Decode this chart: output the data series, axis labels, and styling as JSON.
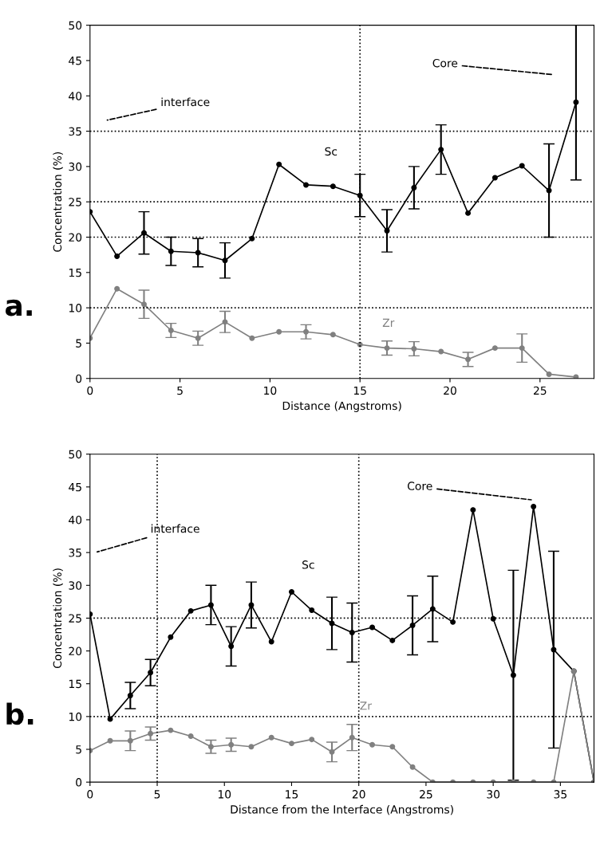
{
  "chart_data": [
    {
      "type": "line",
      "xlabel": "Distance (Angstroms)",
      "ylabel": "Concentration (%)",
      "x": [
        0,
        1.5,
        3,
        4.5,
        6,
        7.5,
        9,
        10.5,
        12,
        13.5,
        15,
        16.5,
        18,
        19.5,
        21,
        22.5,
        24,
        25.5,
        27
      ],
      "series": [
        {
          "name": "Sc",
          "color": "#000000",
          "values": [
            23.6,
            17.3,
            20.6,
            18,
            17.8,
            16.7,
            19.8,
            30.3,
            27.4,
            27.2,
            25.9,
            20.9,
            27,
            32.4,
            23.4,
            28.4,
            30.1,
            26.6,
            39.1
          ],
          "errors": [
            null,
            null,
            3,
            2,
            2,
            2.5,
            null,
            null,
            null,
            null,
            3,
            3,
            3,
            3.5,
            null,
            null,
            null,
            6.6,
            11
          ]
        },
        {
          "name": "Zr",
          "color": "#808080",
          "values": [
            5.7,
            12.7,
            10.5,
            6.8,
            5.7,
            8,
            5.7,
            6.6,
            6.6,
            6.2,
            4.8,
            4.3,
            4.2,
            3.8,
            2.7,
            4.3,
            4.3,
            0.6,
            0.2
          ],
          "errors": [
            null,
            null,
            2,
            1,
            1,
            1.5,
            null,
            null,
            1,
            null,
            null,
            1,
            1,
            null,
            1,
            null,
            2,
            null,
            null
          ]
        }
      ],
      "xlim": [
        0,
        28
      ],
      "ylim": [
        0,
        50
      ],
      "xticks": [
        0,
        5,
        10,
        15,
        20,
        25
      ],
      "yticks": [
        0,
        5,
        10,
        15,
        20,
        25,
        30,
        35,
        40,
        45,
        50
      ],
      "ref_lines": [
        {
          "axis": "y",
          "value": 10,
          "line_style": "dotted"
        },
        {
          "axis": "y",
          "value": 20,
          "line_style": "dotted"
        },
        {
          "axis": "y",
          "value": 25,
          "line_style": "dotted"
        },
        {
          "axis": "y",
          "value": 35,
          "line_style": "dotted"
        },
        {
          "axis": "x",
          "value": 15,
          "line_style": "dotted"
        }
      ],
      "annotations": [
        "a.",
        "interface",
        "Core"
      ],
      "marker": "circle",
      "line_style": "solid",
      "grid": false,
      "legend": false
    },
    {
      "type": "line",
      "xlabel": "Distance from the Interface (Angstroms)",
      "ylabel": "Concentration (%)",
      "x": [
        0,
        1.5,
        3,
        4.5,
        6,
        7.5,
        9,
        10.5,
        12,
        13.5,
        15,
        16.5,
        18,
        19.5,
        21,
        22.5,
        24,
        25.5,
        27,
        28.5,
        30,
        31.5,
        33,
        34.5,
        36,
        37.5
      ],
      "series": [
        {
          "name": "Sc",
          "color": "#000000",
          "values": [
            25.6,
            9.6,
            13.2,
            16.7,
            22.1,
            26.1,
            27,
            20.7,
            27,
            21.4,
            29,
            26.2,
            24.2,
            22.8,
            23.6,
            21.6,
            23.9,
            26.4,
            24.4,
            41.5,
            24.9,
            16.3,
            42,
            20.2,
            16.9,
            0
          ],
          "errors": [
            null,
            null,
            2,
            2,
            null,
            null,
            3,
            3,
            3.5,
            null,
            null,
            null,
            4,
            4.5,
            null,
            null,
            4.5,
            5,
            null,
            null,
            null,
            16,
            null,
            15,
            null,
            null
          ]
        },
        {
          "name": "Zr",
          "color": "#808080",
          "values": [
            4.8,
            6.3,
            6.3,
            7.4,
            7.9,
            7,
            5.4,
            5.7,
            5.4,
            6.8,
            5.9,
            6.5,
            4.6,
            6.8,
            5.7,
            5.4,
            2.3,
            0,
            0,
            0,
            0,
            0,
            0,
            0,
            16.9,
            0
          ],
          "errors": [
            null,
            null,
            1.5,
            1,
            null,
            null,
            1,
            1,
            null,
            null,
            null,
            null,
            1.5,
            2,
            null,
            null,
            null,
            null,
            null,
            null,
            null,
            null,
            null,
            null,
            null,
            null
          ]
        }
      ],
      "xlim": [
        0,
        37.5
      ],
      "ylim": [
        0,
        50
      ],
      "xticks": [
        0,
        5,
        10,
        15,
        20,
        25,
        30,
        35
      ],
      "yticks": [
        0,
        5,
        10,
        15,
        20,
        25,
        30,
        35,
        40,
        45,
        50
      ],
      "ref_lines": [
        {
          "axis": "y",
          "value": 10,
          "line_style": "dotted"
        },
        {
          "axis": "y",
          "value": 25,
          "line_style": "dotted"
        },
        {
          "axis": "x",
          "value": 5,
          "line_style": "dotted"
        },
        {
          "axis": "x",
          "value": 20,
          "line_style": "dotted"
        }
      ],
      "annotations": [
        "b.",
        "interface",
        "Core"
      ],
      "marker": "circle",
      "line_style": "solid",
      "grid": false,
      "legend": false
    }
  ]
}
